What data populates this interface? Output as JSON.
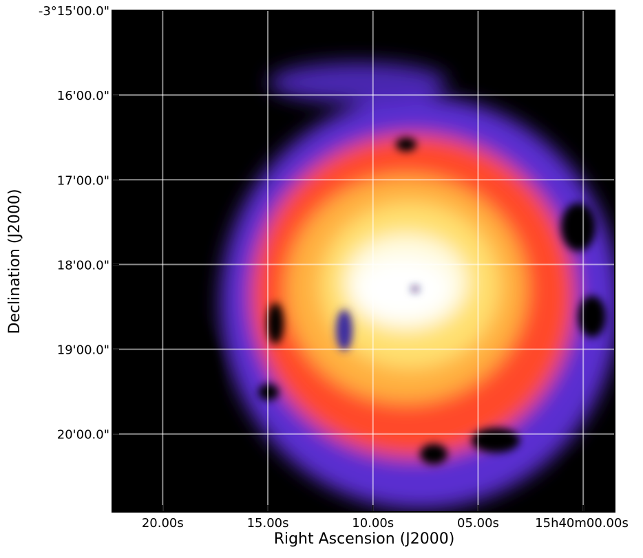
{
  "chart_data": {
    "type": "image",
    "xlabel": "Right Ascension (J2000)",
    "ylabel": "Declination (J2000)",
    "xlim": [
      22.4,
      -1.5
    ],
    "ylim": [
      20.92,
      15
    ],
    "xticks": [
      {
        "value": 20,
        "label": "20.00s"
      },
      {
        "value": 15,
        "label": "15.00s"
      },
      {
        "value": 10,
        "label": "10.00s"
      },
      {
        "value": 5,
        "label": "05.00s"
      },
      {
        "value": 0,
        "label": "15h40m00.00s"
      }
    ],
    "yticks": [
      {
        "value": 15,
        "label": "-3°15'00.0\""
      },
      {
        "value": 16,
        "label": "16'00.0\""
      },
      {
        "value": 17,
        "label": "17'00.0\""
      },
      {
        "value": 18,
        "label": "18'00.0\""
      },
      {
        "value": 19,
        "label": "19'00.0\""
      },
      {
        "value": 20,
        "label": "20'00.0\""
      }
    ],
    "grid": true
  }
}
